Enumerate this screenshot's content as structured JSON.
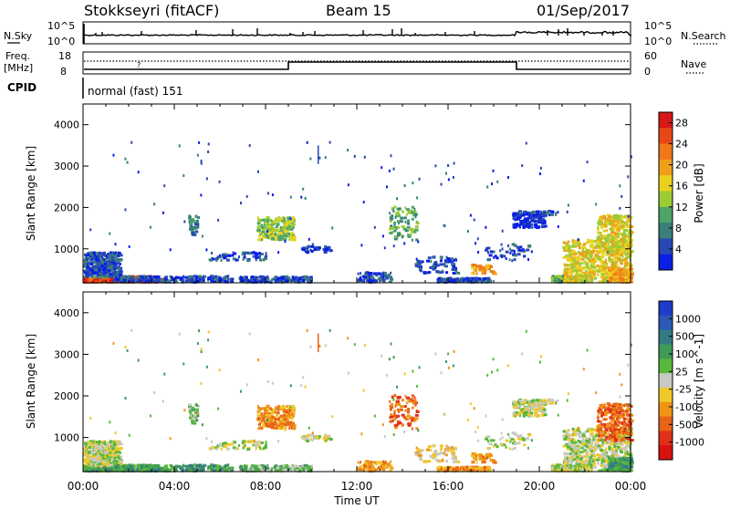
{
  "header": {
    "station": "Stokkseyri (fitACF)",
    "beam": "Beam 15",
    "date": "01/Sep/2017"
  },
  "sky_panel": {
    "left_label": "N.Sky",
    "right_label": "N.Search",
    "left_ticks": [
      "10^5",
      "10^0"
    ],
    "right_ticks": [
      "10^5",
      "10^0"
    ]
  },
  "freq_panel": {
    "left_label_1": "Freq.",
    "left_label_2": "[MHz]",
    "right_label": "Nave",
    "left_ticks": [
      "18",
      "8"
    ],
    "right_ticks": [
      "60",
      "0"
    ]
  },
  "cpid": {
    "label": "CPID",
    "program": "normal (fast) 151"
  },
  "x_axis": {
    "label": "Time UT",
    "ticks": [
      "00:00",
      "04:00",
      "08:00",
      "12:00",
      "16:00",
      "20:00",
      "00:00"
    ]
  },
  "chart_data": [
    {
      "type": "heatmap",
      "title": "",
      "ylabel": "Slant Range [km]",
      "xlabel": "Time UT",
      "xlim_hours": [
        0,
        24
      ],
      "ylim": [
        180,
        4500
      ],
      "yticks": [
        1000,
        2000,
        3000,
        4000
      ],
      "colorbar": {
        "label": "Power [dB]",
        "ticks": [
          "4",
          "8",
          "12",
          "16",
          "20",
          "24",
          "28"
        ],
        "range": [
          0,
          30
        ],
        "colors": [
          "#0a1ee6",
          "#2848b4",
          "#3b7f7a",
          "#4da56a",
          "#9ccc34",
          "#e8d21e",
          "#f0a018",
          "#f07818",
          "#e84818",
          "#d81818"
        ]
      }
    },
    {
      "type": "heatmap",
      "title": "",
      "ylabel": "Slant Range [km]",
      "xlabel": "Time UT",
      "xlim_hours": [
        0,
        24
      ],
      "ylim": [
        180,
        4500
      ],
      "yticks": [
        1000,
        2000,
        3000,
        4000
      ],
      "colorbar": {
        "label": "Velocity [m s^-1]",
        "ticks": [
          "1000",
          "500",
          "100",
          "25",
          "-25",
          "-100",
          "-500",
          "-1000"
        ],
        "colors": [
          "#1e3cc8",
          "#2a5ab4",
          "#347a84",
          "#3f9a58",
          "#58b83c",
          "#c8c8c4",
          "#f0c828",
          "#f09418",
          "#e86418",
          "#e03018",
          "#d81010"
        ]
      }
    }
  ]
}
